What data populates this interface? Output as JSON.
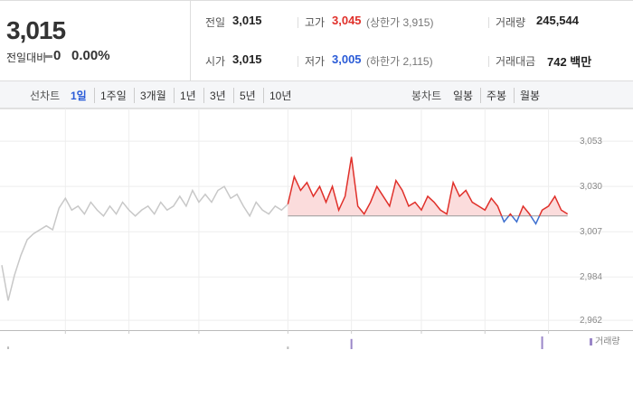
{
  "header": {
    "price": "3,015",
    "change_label": "전일대비",
    "change": "0",
    "change_pct": "0.00%",
    "stats": [
      [
        {
          "label": "전일",
          "value": "3,015"
        },
        {
          "label": "고가",
          "value": "3,045",
          "extra": "(상한가 3,915)"
        },
        {
          "label": "거래량",
          "value": "245,544"
        }
      ],
      [
        {
          "label": "시가",
          "value": "3,015"
        },
        {
          "label": "저가",
          "value": "3,005",
          "extra": "(하한가 2,115)"
        },
        {
          "label": "거래대금",
          "value": "742 백만"
        }
      ]
    ]
  },
  "tabs": {
    "line_label": "선차트",
    "line_periods": [
      "1일",
      "1주일",
      "3개월",
      "1년",
      "3년",
      "5년",
      "10년"
    ],
    "candle_label": "봉차트",
    "candle_periods": [
      "일봉",
      "주봉",
      "월봉"
    ]
  },
  "chart_data": {
    "type": "line",
    "baseline": 3015,
    "ylim": [
      2957,
      3065
    ],
    "yticks": [
      {
        "value": 3053,
        "label": "3,053"
      },
      {
        "value": 3030,
        "label": "3,030"
      },
      {
        "value": 3007,
        "label": "3,007"
      },
      {
        "value": 2984,
        "label": "2,984"
      },
      {
        "value": 2962,
        "label": "2,962"
      }
    ],
    "grid": true,
    "xgrid": [
      10,
      20,
      31,
      45,
      55,
      66,
      76,
      86
    ],
    "series": [
      {
        "color": "#c8c8c8",
        "values": [
          2990,
          2972,
          2985,
          2995,
          3003,
          3006,
          3008,
          3010,
          3008,
          3019,
          3024,
          3018,
          3020,
          3016,
          3022,
          3018,
          3015,
          3020,
          3016,
          3022,
          3018,
          3015,
          3018,
          3020,
          3016,
          3022,
          3018,
          3020,
          3025,
          3020,
          3028,
          3022,
          3026,
          3022,
          3028,
          3030,
          3024,
          3026,
          3020,
          3015,
          3022,
          3018,
          3016,
          3020,
          3018,
          3021,
          null,
          null,
          null,
          null,
          null,
          null,
          null,
          null,
          null,
          null,
          null,
          null,
          null,
          null,
          null,
          null,
          null,
          null,
          null,
          null,
          null,
          null,
          null,
          null,
          null,
          null,
          null,
          null,
          null,
          null,
          null,
          null,
          null,
          null,
          null,
          null,
          null,
          null,
          null,
          null,
          null,
          null,
          null,
          null
        ]
      },
      {
        "color": "#e0302a",
        "below_color": "#3d6fcf",
        "values": [
          null,
          null,
          null,
          null,
          null,
          null,
          null,
          null,
          null,
          null,
          null,
          null,
          null,
          null,
          null,
          null,
          null,
          null,
          null,
          null,
          null,
          null,
          null,
          null,
          null,
          null,
          null,
          null,
          null,
          null,
          null,
          null,
          null,
          null,
          null,
          null,
          null,
          null,
          null,
          null,
          null,
          null,
          null,
          null,
          null,
          3021,
          3035,
          3028,
          3032,
          3025,
          3030,
          3022,
          3030,
          3018,
          3025,
          3045,
          3020,
          3016,
          3022,
          3030,
          3025,
          3020,
          3033,
          3028,
          3020,
          3022,
          3018,
          3025,
          3022,
          3018,
          3016,
          3032,
          3025,
          3028,
          3022,
          3020,
          3018,
          3024,
          3020,
          3012,
          3016,
          3012,
          3020,
          3016,
          3011,
          3018,
          3020,
          3025,
          3018,
          3016
        ]
      }
    ],
    "volume_label": "거래량",
    "volume_x": [
      1,
      45,
      55,
      85
    ],
    "volume": [
      2,
      2,
      8,
      10
    ],
    "volume_colors": [
      "#bbbbbb",
      "#bbbbbb",
      "#9a86c8",
      "#9a86c8"
    ]
  }
}
